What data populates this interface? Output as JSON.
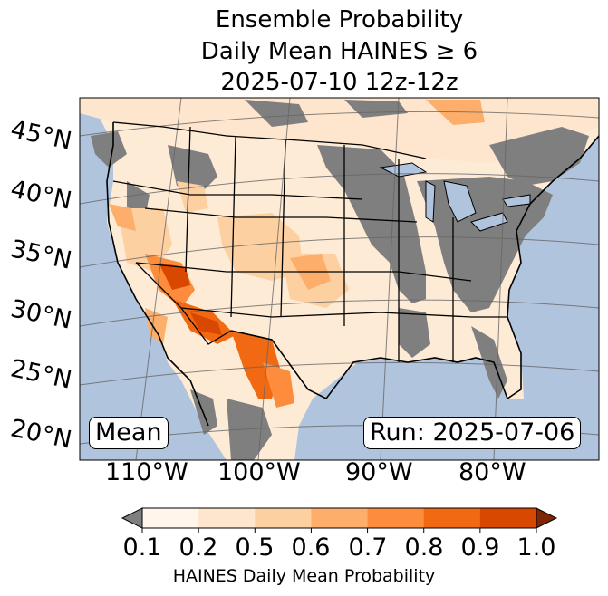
{
  "title": {
    "line1": "Ensemble Probability",
    "line2": "Daily Mean HAINES ≥ 6",
    "line3": "2025-07-10 12z-12z"
  },
  "map": {
    "lat_labels": [
      "45°N",
      "40°N",
      "35°N",
      "30°N",
      "25°N",
      "20°N"
    ],
    "lon_labels": [
      "110°W",
      "100°W",
      "90°W",
      "80°W"
    ],
    "ocean_color": "#b0c4de",
    "land_missing_color": "#7f7f7f",
    "stat_label": "Mean",
    "run_label": "Run: 2025-07-06"
  },
  "colorbar": {
    "ticks": [
      "0.1",
      "0.2",
      "0.5",
      "0.6",
      "0.7",
      "0.8",
      "0.9",
      "1.0"
    ],
    "label": "HAINES Daily Mean Probability",
    "under_color": "#7f7f7f",
    "over_color": "#7f2704",
    "colors": [
      "#fff5eb",
      "#fee6ce",
      "#fdd0a2",
      "#fdae6b",
      "#fd8d3c",
      "#f16913",
      "#d94801"
    ]
  }
}
